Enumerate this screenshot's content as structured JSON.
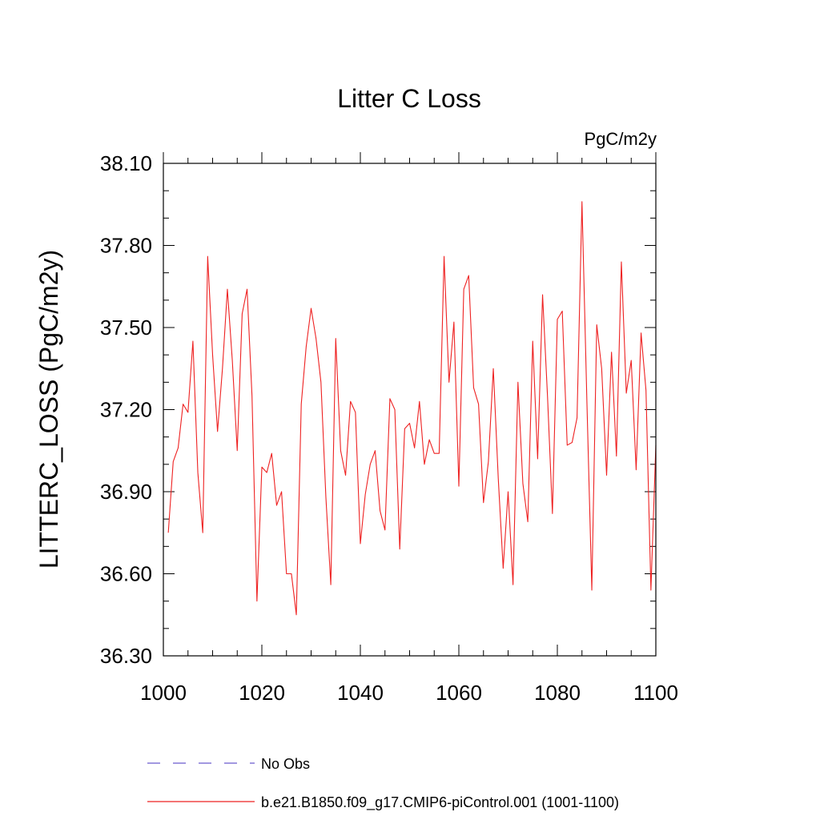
{
  "chart_data": {
    "type": "line",
    "title": "Litter C Loss",
    "units_label": "PgC/m2y",
    "ylabel": "LITTERC_LOSS  (PgC/m2y)",
    "xlabel": "",
    "xlim": [
      1000,
      1100
    ],
    "ylim": [
      36.3,
      38.1
    ],
    "x_ticks": [
      1000,
      1020,
      1040,
      1060,
      1080,
      1100
    ],
    "x_tick_labels": [
      "1000",
      "1020",
      "1040",
      "1060",
      "1080",
      "1100"
    ],
    "y_ticks": [
      36.3,
      36.6,
      36.9,
      37.2,
      37.5,
      37.8,
      38.1
    ],
    "y_tick_labels": [
      "36.30",
      "36.60",
      "36.90",
      "37.20",
      "37.50",
      "37.80",
      "38.10"
    ],
    "grid": false,
    "legend": [
      {
        "label": "No Obs",
        "style": "dashed",
        "color": "#6a5acd"
      },
      {
        "label": "b.e21.B1850.f09_g17.CMIP6-piControl.001 (1001-1100)",
        "style": "solid",
        "color": "#ee2222"
      }
    ],
    "series": [
      {
        "name": "b.e21.B1850.f09_g17.CMIP6-piControl.001 (1001-1100)",
        "color": "#ee2222",
        "x": [
          1001,
          1002,
          1003,
          1004,
          1005,
          1006,
          1007,
          1008,
          1009,
          1010,
          1011,
          1012,
          1013,
          1014,
          1015,
          1016,
          1017,
          1018,
          1019,
          1020,
          1021,
          1022,
          1023,
          1024,
          1025,
          1026,
          1027,
          1028,
          1029,
          1030,
          1031,
          1032,
          1033,
          1034,
          1035,
          1036,
          1037,
          1038,
          1039,
          1040,
          1041,
          1042,
          1043,
          1044,
          1045,
          1046,
          1047,
          1048,
          1049,
          1050,
          1051,
          1052,
          1053,
          1054,
          1055,
          1056,
          1057,
          1058,
          1059,
          1060,
          1061,
          1062,
          1063,
          1064,
          1065,
          1066,
          1067,
          1068,
          1069,
          1070,
          1071,
          1072,
          1073,
          1074,
          1075,
          1076,
          1077,
          1078,
          1079,
          1080,
          1081,
          1082,
          1083,
          1084,
          1085,
          1086,
          1087,
          1088,
          1089,
          1090,
          1091,
          1092,
          1093,
          1094,
          1095,
          1096,
          1097,
          1098,
          1099,
          1100
        ],
        "values": [
          36.75,
          37.01,
          37.06,
          37.22,
          37.19,
          37.45,
          36.97,
          36.75,
          37.76,
          37.4,
          37.12,
          37.35,
          37.64,
          37.38,
          37.05,
          37.55,
          37.64,
          37.25,
          36.5,
          36.99,
          36.97,
          37.04,
          36.85,
          36.9,
          36.6,
          36.6,
          36.45,
          37.22,
          37.43,
          37.57,
          37.46,
          37.3,
          36.88,
          36.56,
          37.46,
          37.05,
          36.96,
          37.23,
          37.19,
          36.71,
          36.89,
          37.0,
          37.05,
          36.83,
          36.76,
          37.24,
          37.2,
          36.69,
          37.13,
          37.15,
          37.06,
          37.23,
          37.0,
          37.09,
          37.04,
          37.04,
          37.76,
          37.3,
          37.52,
          36.92,
          37.64,
          37.69,
          37.28,
          37.22,
          36.86,
          37.01,
          37.35,
          36.95,
          36.62,
          36.9,
          36.56,
          37.3,
          36.93,
          36.79,
          37.45,
          37.02,
          37.62,
          37.25,
          36.82,
          37.53,
          37.56,
          37.07,
          37.08,
          37.17,
          37.96,
          37.23,
          36.54,
          37.51,
          37.35,
          36.96,
          37.41,
          37.03,
          37.74,
          37.26,
          37.38,
          36.98,
          37.48,
          37.27,
          36.54,
          37.07
        ]
      }
    ]
  }
}
